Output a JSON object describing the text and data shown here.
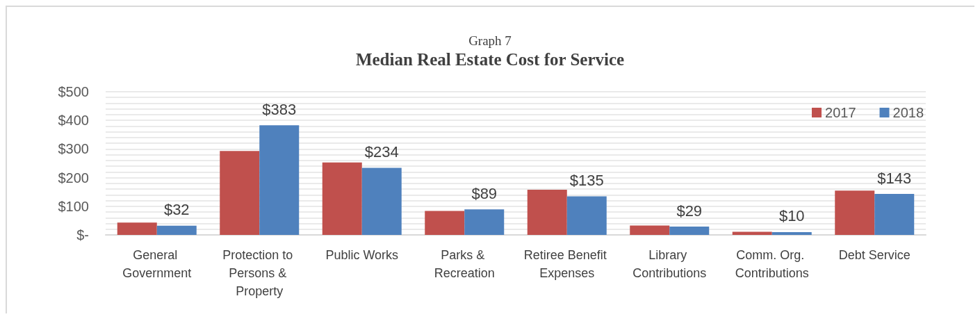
{
  "chart_data": {
    "type": "bar",
    "title": "Median Real Estate Cost for Service",
    "subtitle": "Graph 7",
    "categories": [
      "General Government",
      "Protection to Persons & Property",
      "Public Works",
      "Parks & Recreation",
      "Retiree Benefit Expenses",
      "Library Contributions",
      "Comm. Org. Contributions",
      "Debt Service"
    ],
    "series": [
      {
        "name": "2017",
        "color": "#c0504d",
        "values": [
          43,
          293,
          253,
          84,
          158,
          33,
          11,
          155
        ]
      },
      {
        "name": "2018",
        "color": "#4f81bd",
        "values": [
          32,
          383,
          234,
          89,
          135,
          29,
          10,
          143
        ],
        "value_labels": [
          "$32",
          "$383",
          "$234",
          "$89",
          "$135",
          "$29",
          "$10",
          "$143"
        ]
      }
    ],
    "ylim": [
      0,
      500
    ],
    "yticks": [
      {
        "value": 0,
        "label": "$-"
      },
      {
        "value": 20,
        "label": null
      },
      {
        "value": 40,
        "label": null
      },
      {
        "value": 60,
        "label": null
      },
      {
        "value": 80,
        "label": null
      },
      {
        "value": 100,
        "label": "$100"
      },
      {
        "value": 120,
        "label": null
      },
      {
        "value": 140,
        "label": null
      },
      {
        "value": 160,
        "label": null
      },
      {
        "value": 180,
        "label": null
      },
      {
        "value": 200,
        "label": "$200"
      },
      {
        "value": 220,
        "label": null
      },
      {
        "value": 240,
        "label": null
      },
      {
        "value": 260,
        "label": null
      },
      {
        "value": 280,
        "label": null
      },
      {
        "value": 300,
        "label": "$300"
      },
      {
        "value": 320,
        "label": null
      },
      {
        "value": 340,
        "label": null
      },
      {
        "value": 360,
        "label": null
      },
      {
        "value": 380,
        "label": null
      },
      {
        "value": 400,
        "label": "$400"
      },
      {
        "value": 420,
        "label": null
      },
      {
        "value": 440,
        "label": null
      },
      {
        "value": 460,
        "label": null
      },
      {
        "value": 480,
        "label": null
      },
      {
        "value": 500,
        "label": "$500"
      }
    ],
    "grid": "y",
    "legend": "top right"
  }
}
